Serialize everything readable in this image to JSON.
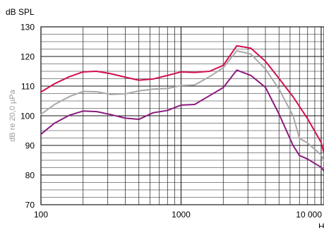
{
  "chart_data": {
    "type": "line",
    "unit_label": "dB SPL",
    "ylabel": "dB re 20,0 µPa",
    "x_unit": "Hz",
    "xscale": "log",
    "xlim": [
      100,
      10000
    ],
    "ylim": [
      70,
      130
    ],
    "y_ticks": [
      "70",
      "80",
      "90",
      "100",
      "110",
      "120",
      "130"
    ],
    "x_ticks": [
      {
        "value": 100,
        "label": "100"
      },
      {
        "value": 1000,
        "label": "1000"
      },
      {
        "value": 10000,
        "label": "10 000"
      }
    ],
    "grid": true,
    "colors": {
      "red": "#d0104c",
      "gray": "#a8a8a8",
      "purple": "#8a1a7e",
      "grid": "#1a1a1a"
    },
    "series": [
      {
        "color": "#d0104c",
        "points": [
          [
            100,
            108
          ],
          [
            125,
            110.8
          ],
          [
            160,
            113.2
          ],
          [
            200,
            114.8
          ],
          [
            250,
            115
          ],
          [
            315,
            114.2
          ],
          [
            400,
            113
          ],
          [
            500,
            112
          ],
          [
            630,
            112.4
          ],
          [
            800,
            113.6
          ],
          [
            1000,
            114.8
          ],
          [
            1250,
            114.6
          ],
          [
            1600,
            115
          ],
          [
            2000,
            117
          ],
          [
            2500,
            123.6
          ],
          [
            3150,
            122.8
          ],
          [
            4000,
            118.4
          ],
          [
            5000,
            112.6
          ],
          [
            6300,
            106.4
          ],
          [
            8000,
            99
          ],
          [
            10000,
            91
          ],
          [
            11500,
            80
          ]
        ]
      },
      {
        "color": "#a8a8a8",
        "points": [
          [
            100,
            100.5
          ],
          [
            125,
            103.8
          ],
          [
            160,
            106.5
          ],
          [
            200,
            108.2
          ],
          [
            250,
            108.1
          ],
          [
            315,
            107.2
          ],
          [
            400,
            107.4
          ],
          [
            500,
            108.4
          ],
          [
            630,
            109
          ],
          [
            800,
            109.2
          ],
          [
            1000,
            110.2
          ],
          [
            1250,
            110.4
          ],
          [
            1600,
            113.2
          ],
          [
            2000,
            116.2
          ],
          [
            2500,
            121.9
          ],
          [
            3150,
            120.8
          ],
          [
            4000,
            115.8
          ],
          [
            5000,
            109
          ],
          [
            6300,
            100
          ],
          [
            7000,
            92.4
          ],
          [
            8000,
            90.8
          ],
          [
            10000,
            86.8
          ],
          [
            11500,
            81
          ]
        ]
      },
      {
        "color": "#8a1a7e",
        "points": [
          [
            100,
            93.8
          ],
          [
            125,
            97.5
          ],
          [
            160,
            100.2
          ],
          [
            200,
            101.6
          ],
          [
            250,
            101.4
          ],
          [
            315,
            100.4
          ],
          [
            400,
            99.2
          ],
          [
            500,
            98.8
          ],
          [
            630,
            101
          ],
          [
            800,
            101.8
          ],
          [
            1000,
            103.6
          ],
          [
            1250,
            103.8
          ],
          [
            1600,
            106.8
          ],
          [
            2000,
            109.5
          ],
          [
            2500,
            115.4
          ],
          [
            3150,
            113.6
          ],
          [
            4000,
            109.6
          ],
          [
            5000,
            100.6
          ],
          [
            6300,
            90
          ],
          [
            7000,
            86.6
          ],
          [
            8000,
            85.4
          ],
          [
            10000,
            82.6
          ],
          [
            11500,
            79
          ]
        ]
      }
    ]
  }
}
